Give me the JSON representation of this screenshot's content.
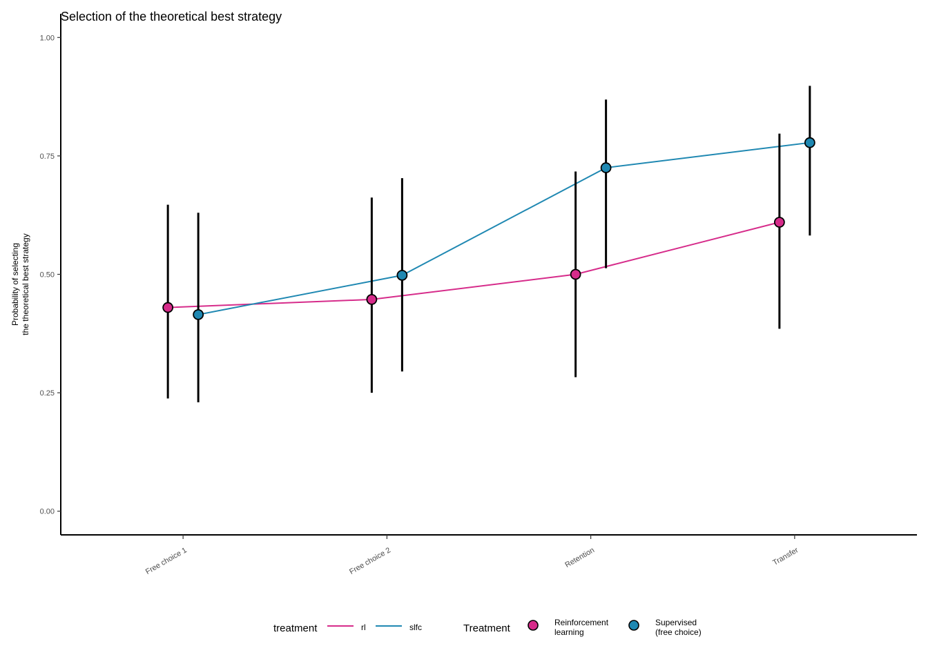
{
  "chart_data": {
    "type": "line",
    "title": "Selection of the theoretical best strategy",
    "ylabel_line1": "Probability of selecting",
    "ylabel_line2": "the theoretical best strategy",
    "xlabel": "",
    "categories": [
      "Free choice 1",
      "Free choice 2",
      "Retention",
      "Transfer"
    ],
    "ylim": [
      -0.05,
      1.05
    ],
    "yticks": [
      0.0,
      0.25,
      0.5,
      0.75,
      1.0
    ],
    "ytick_labels": [
      "0.00",
      "0.25",
      "0.50",
      "0.75",
      "1.00"
    ],
    "grid": false,
    "series": [
      {
        "key": "rl",
        "name": "Reinforcement learning",
        "name_line1": "Reinforcement",
        "name_line2": "learning",
        "color": "#D62B8A",
        "values": [
          0.43,
          0.447,
          0.5,
          0.61
        ],
        "lower": [
          0.238,
          0.25,
          0.283,
          0.385
        ],
        "upper": [
          0.647,
          0.662,
          0.717,
          0.797
        ]
      },
      {
        "key": "slfc",
        "name": "Supervised (free choice)",
        "name_line1": "Supervised",
        "name_line2": "(free choice)",
        "color": "#1F88B2",
        "values": [
          0.415,
          0.498,
          0.725,
          0.778
        ],
        "lower": [
          0.23,
          0.295,
          0.513,
          0.582
        ],
        "upper": [
          0.63,
          0.703,
          0.869,
          0.898
        ]
      }
    ],
    "legend": {
      "position": "bottom",
      "line_title": "treatment",
      "line_labels": [
        "rl",
        "slfc"
      ],
      "point_title": "Treatment"
    }
  }
}
